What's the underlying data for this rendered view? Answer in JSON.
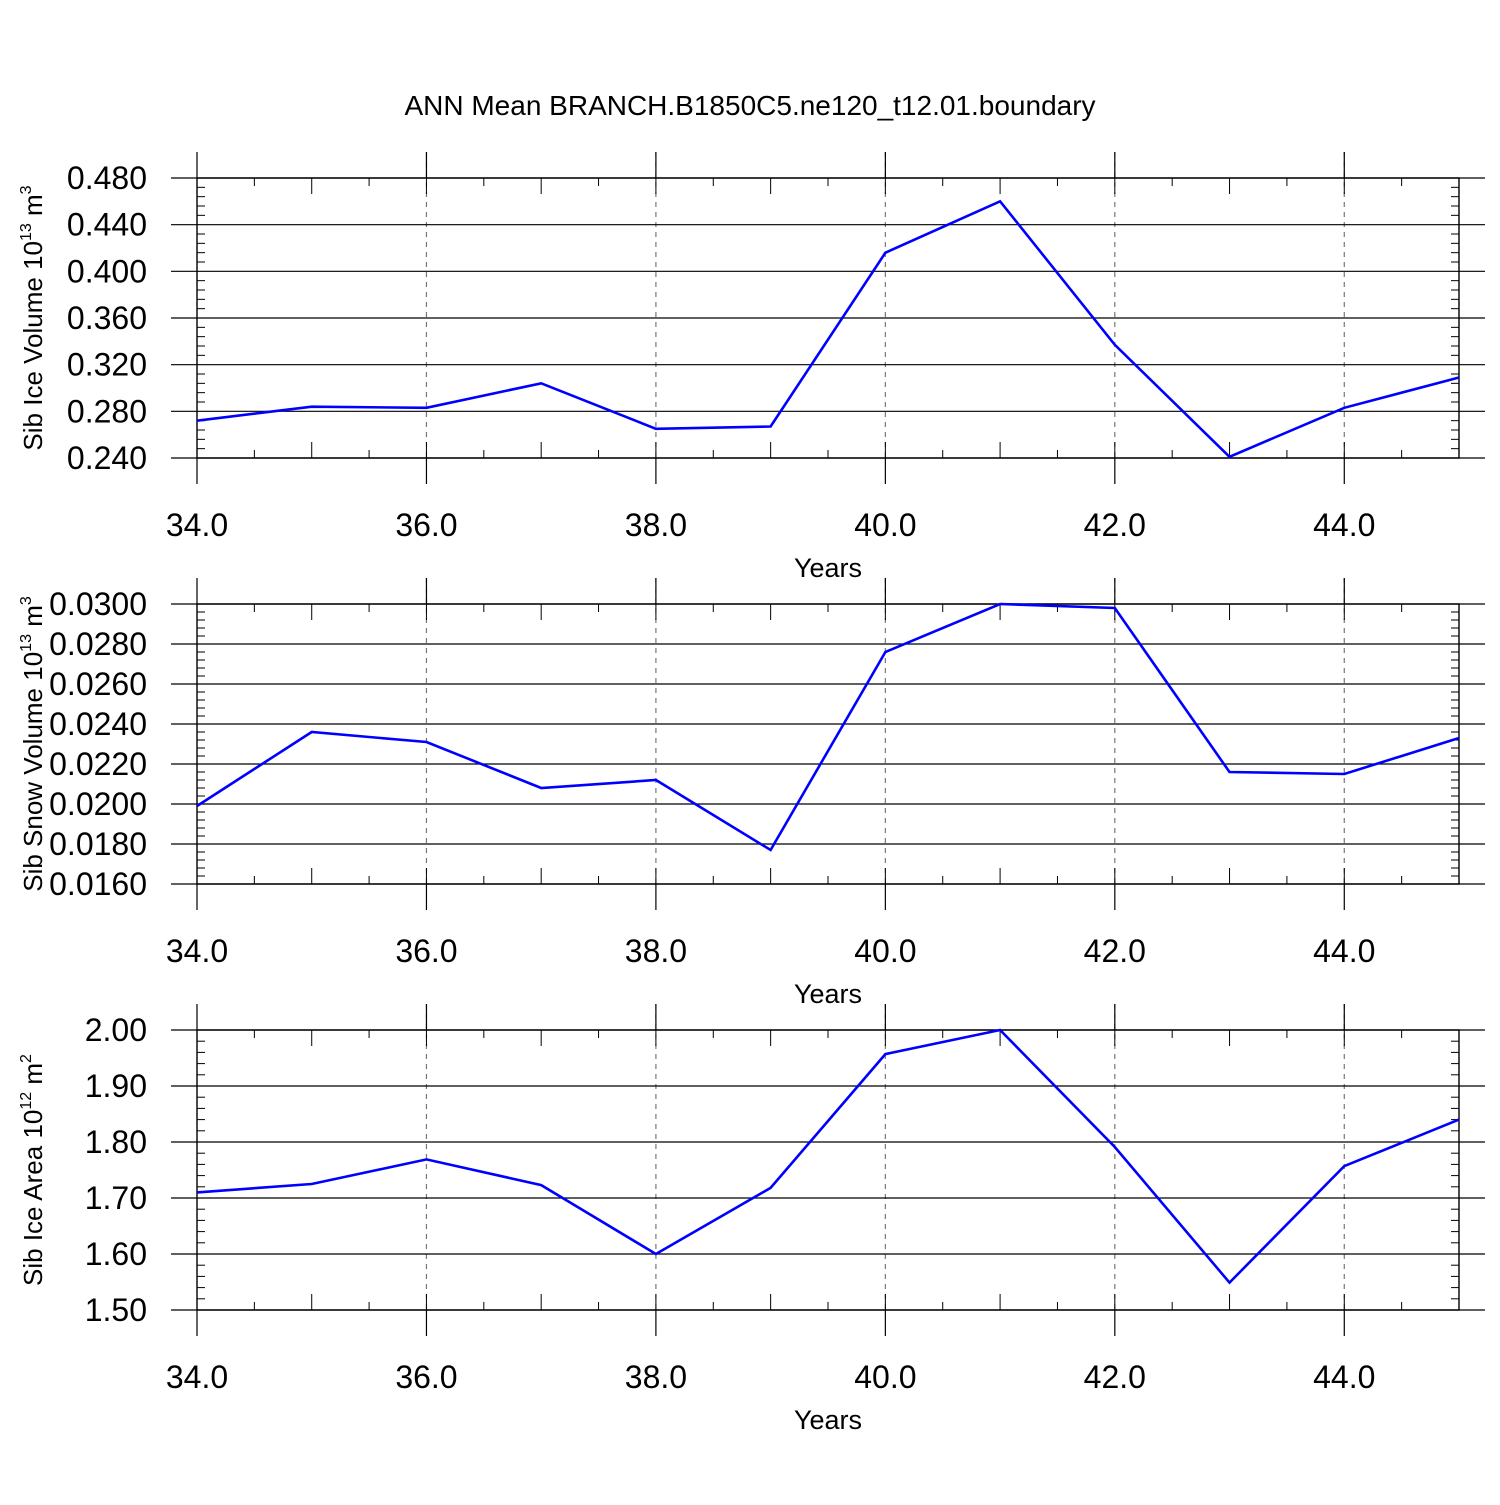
{
  "figure": {
    "title": "ANN Mean BRANCH.B1850C5.ne120_t12.01.boundary"
  },
  "chart_data": [
    {
      "type": "line",
      "xlabel": "Years",
      "ylabel_text": "Sib Ice Volume 10",
      "ylabel_exp": "13",
      "ylabel_unit": " m",
      "ylabel_unit_exp": "3",
      "xlim": [
        34,
        45
      ],
      "ylim": [
        0.24,
        0.48
      ],
      "x_ticks": [
        "34.0",
        "36.0",
        "38.0",
        "40.0",
        "42.0",
        "44.0"
      ],
      "y_ticks": [
        "0.240",
        "0.280",
        "0.320",
        "0.360",
        "0.400",
        "0.440",
        "0.480"
      ],
      "grid": "vertical-dashed",
      "line_color": "#0000ff",
      "x": [
        34,
        35,
        36,
        37,
        38,
        39,
        40,
        41,
        42,
        43,
        44,
        45
      ],
      "values": [
        0.272,
        0.284,
        0.283,
        0.304,
        0.265,
        0.267,
        0.416,
        0.46,
        0.337,
        0.241,
        0.283,
        0.309
      ]
    },
    {
      "type": "line",
      "xlabel": "Years",
      "ylabel_text": "Sib Snow Volume 10",
      "ylabel_exp": "13",
      "ylabel_unit": " m",
      "ylabel_unit_exp": "3",
      "xlim": [
        34,
        45
      ],
      "ylim": [
        0.016,
        0.03
      ],
      "x_ticks": [
        "34.0",
        "36.0",
        "38.0",
        "40.0",
        "42.0",
        "44.0"
      ],
      "y_ticks": [
        "0.0160",
        "0.0180",
        "0.0200",
        "0.0220",
        "0.0240",
        "0.0260",
        "0.0280",
        "0.0300"
      ],
      "grid": "vertical-dashed",
      "line_color": "#0000ff",
      "x": [
        34,
        35,
        36,
        37,
        38,
        39,
        40,
        41,
        42,
        43,
        44,
        45
      ],
      "values": [
        0.0199,
        0.0236,
        0.0231,
        0.0208,
        0.0212,
        0.0177,
        0.0276,
        0.03,
        0.0298,
        0.0216,
        0.0215,
        0.0233
      ]
    },
    {
      "type": "line",
      "xlabel": "Years",
      "ylabel_text": "Sib Ice Area 10",
      "ylabel_exp": "12",
      "ylabel_unit": " m",
      "ylabel_unit_exp": "2",
      "xlim": [
        34,
        45
      ],
      "ylim": [
        1.5,
        2.0
      ],
      "x_ticks": [
        "34.0",
        "36.0",
        "38.0",
        "40.0",
        "42.0",
        "44.0"
      ],
      "y_ticks": [
        "1.50",
        "1.60",
        "1.70",
        "1.80",
        "1.90",
        "2.00"
      ],
      "grid": "vertical-dashed",
      "line_color": "#0000ff",
      "x": [
        34,
        35,
        36,
        37,
        38,
        39,
        40,
        41,
        42,
        43,
        44,
        45
      ],
      "values": [
        1.71,
        1.725,
        1.769,
        1.723,
        1.6,
        1.718,
        1.957,
        2.0,
        1.791,
        1.549,
        1.757,
        1.84
      ]
    }
  ]
}
